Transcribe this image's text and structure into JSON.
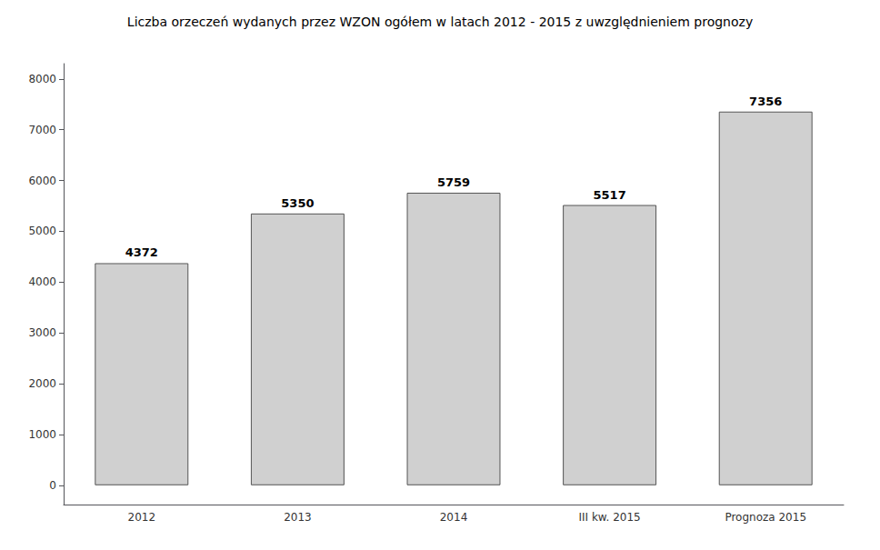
{
  "chart_data": {
    "type": "bar",
    "title": "Liczba orzeczeń wydanych przez WZON ogółem w latach 2012 - 2015 z uwzględnieniem prognozy",
    "categories": [
      "2012",
      "2013",
      "2014",
      "III kw. 2015",
      "Prognoza 2015"
    ],
    "values": [
      4372,
      5350,
      5759,
      5517,
      7356
    ],
    "color": "#d0d0d0",
    "ylim": [
      -380,
      8300
    ],
    "yticks": [
      0,
      1000,
      2000,
      3000,
      4000,
      5000,
      6000,
      7000,
      8000
    ],
    "grid": false,
    "data_labels": true
  }
}
